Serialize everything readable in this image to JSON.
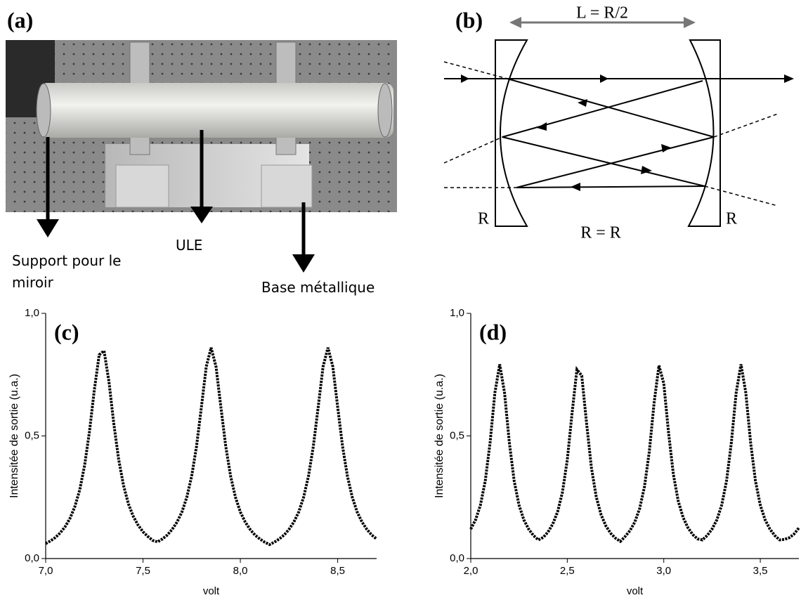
{
  "panel_a": {
    "label": "(a)",
    "annotations": [
      "Support pour le miroir",
      "ULE",
      "Base métallique"
    ]
  },
  "panel_b": {
    "label": "(b)",
    "length_label": "L = R/2",
    "left_mirror": "R",
    "right_mirror": "R",
    "relation": "R = R"
  },
  "chart_data": [
    {
      "type": "line",
      "panel_label": "(c)",
      "x_label": "volt",
      "y_label": "Intensitée de sortie (u.a.)",
      "color": "#000000",
      "x": [
        7.0,
        7.025,
        7.05,
        7.075,
        7.1,
        7.125,
        7.15,
        7.175,
        7.2,
        7.225,
        7.25,
        7.275,
        7.3,
        7.325,
        7.35,
        7.375,
        7.4,
        7.425,
        7.45,
        7.475,
        7.5,
        7.525,
        7.55,
        7.575,
        7.6,
        7.625,
        7.65,
        7.675,
        7.7,
        7.725,
        7.75,
        7.775,
        7.8,
        7.825,
        7.85,
        7.875,
        7.9,
        7.925,
        7.95,
        7.975,
        8.0,
        8.025,
        8.05,
        8.075,
        8.1,
        8.125,
        8.15,
        8.175,
        8.2,
        8.225,
        8.25,
        8.275,
        8.3,
        8.325,
        8.35,
        8.375,
        8.4,
        8.425,
        8.45,
        8.475,
        8.5,
        8.525,
        8.55,
        8.575,
        8.6,
        8.625,
        8.65,
        8.675,
        8.7
      ],
      "values": [
        0.061,
        0.072,
        0.086,
        0.105,
        0.13,
        0.164,
        0.212,
        0.28,
        0.38,
        0.518,
        0.688,
        0.831,
        0.847,
        0.722,
        0.55,
        0.404,
        0.298,
        0.223,
        0.172,
        0.136,
        0.109,
        0.09,
        0.074,
        0.068,
        0.08,
        0.096,
        0.119,
        0.149,
        0.19,
        0.25,
        0.336,
        0.458,
        0.618,
        0.783,
        0.86,
        0.783,
        0.618,
        0.458,
        0.336,
        0.25,
        0.19,
        0.149,
        0.119,
        0.096,
        0.08,
        0.067,
        0.057,
        0.067,
        0.08,
        0.096,
        0.119,
        0.149,
        0.19,
        0.25,
        0.336,
        0.458,
        0.618,
        0.783,
        0.86,
        0.783,
        0.618,
        0.458,
        0.336,
        0.25,
        0.19,
        0.149,
        0.119,
        0.096,
        0.08
      ],
      "xlim": [
        7.0,
        8.7
      ],
      "ylim": [
        0,
        1
      ],
      "xticks": [
        {
          "value": 7.0,
          "label": "7,0"
        },
        {
          "value": 7.5,
          "label": "7,5"
        },
        {
          "value": 8.0,
          "label": "8,0"
        },
        {
          "value": 8.5,
          "label": "8,5"
        }
      ],
      "yticks": [
        {
          "value": 0,
          "label": "0,0"
        },
        {
          "value": 0.5,
          "label": "0,5"
        },
        {
          "value": 1,
          "label": "1,0"
        }
      ]
    },
    {
      "type": "line",
      "panel_label": "(d)",
      "x_label": "volt",
      "y_label": "Intensitée de sortie (u.a.)",
      "color": "#000000",
      "x": [
        2.0,
        2.025,
        2.05,
        2.075,
        2.1,
        2.125,
        2.15,
        2.175,
        2.2,
        2.225,
        2.25,
        2.275,
        2.3,
        2.325,
        2.35,
        2.375,
        2.4,
        2.425,
        2.45,
        2.475,
        2.5,
        2.525,
        2.55,
        2.575,
        2.6,
        2.625,
        2.65,
        2.675,
        2.7,
        2.725,
        2.75,
        2.775,
        2.8,
        2.825,
        2.85,
        2.875,
        2.9,
        2.925,
        2.95,
        2.975,
        3.0,
        3.025,
        3.05,
        3.075,
        3.1,
        3.125,
        3.15,
        3.175,
        3.2,
        3.225,
        3.25,
        3.275,
        3.3,
        3.325,
        3.35,
        3.375,
        3.4,
        3.425,
        3.45,
        3.475,
        3.5,
        3.525,
        3.55,
        3.575,
        3.6,
        3.625,
        3.65,
        3.675,
        3.7
      ],
      "values": [
        0.12,
        0.158,
        0.218,
        0.316,
        0.472,
        0.676,
        0.792,
        0.676,
        0.472,
        0.316,
        0.218,
        0.158,
        0.12,
        0.094,
        0.076,
        0.086,
        0.108,
        0.141,
        0.191,
        0.271,
        0.402,
        0.594,
        0.771,
        0.746,
        0.552,
        0.371,
        0.252,
        0.179,
        0.133,
        0.103,
        0.083,
        0.07,
        0.09,
        0.114,
        0.149,
        0.204,
        0.293,
        0.436,
        0.636,
        0.787,
        0.714,
        0.511,
        0.342,
        0.234,
        0.168,
        0.126,
        0.098,
        0.08,
        0.076,
        0.094,
        0.12,
        0.158,
        0.218,
        0.316,
        0.472,
        0.676,
        0.792,
        0.676,
        0.472,
        0.316,
        0.218,
        0.158,
        0.12,
        0.094,
        0.076,
        0.078,
        0.085,
        0.1,
        0.125
      ],
      "xlim": [
        2.0,
        3.7
      ],
      "ylim": [
        0,
        1
      ],
      "xticks": [
        {
          "value": 2.0,
          "label": "2,0"
        },
        {
          "value": 2.5,
          "label": "2,5"
        },
        {
          "value": 3.0,
          "label": "3,0"
        },
        {
          "value": 3.5,
          "label": "3,5"
        }
      ],
      "yticks": [
        {
          "value": 0,
          "label": "0,0"
        },
        {
          "value": 0.5,
          "label": "0,5"
        },
        {
          "value": 1,
          "label": "1,0"
        }
      ]
    }
  ]
}
